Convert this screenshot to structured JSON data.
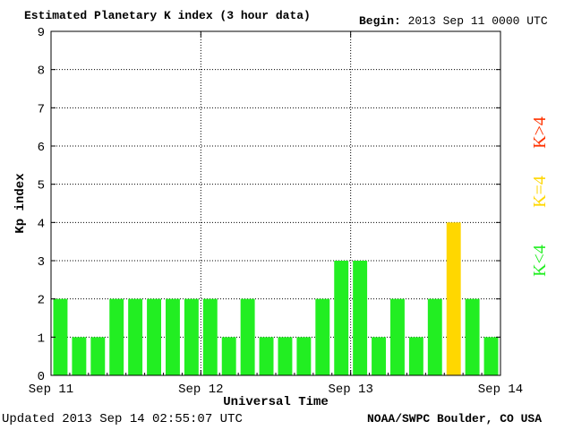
{
  "header": {
    "title": "Estimated Planetary K index (3 hour data)",
    "begin_label": "Begin:",
    "begin_value": "2013 Sep 11 0000 UTC"
  },
  "footer": {
    "updated": "Updated 2013 Sep 14 02:55:07 UTC",
    "credit": "NOAA/SWPC Boulder, CO USA"
  },
  "legend": {
    "high": "K>4",
    "mid": "K=4",
    "low": "K<4"
  },
  "colors": {
    "low": "#22ee22",
    "mid": "#ffd700",
    "high": "#ff3300",
    "axis": "#000000",
    "grid": "#000000"
  },
  "chart_data": {
    "type": "bar",
    "title": "Estimated Planetary K index (3 hour data)",
    "xlabel": "Universal Time",
    "ylabel": "Kp index",
    "ylim": [
      0,
      9
    ],
    "yticks": [
      "0",
      "1",
      "2",
      "3",
      "4",
      "5",
      "6",
      "7",
      "8",
      "9"
    ],
    "xticks": [
      "Sep 11",
      "Sep 12",
      "Sep 13",
      "Sep 14"
    ],
    "grid": true,
    "interval": "3 hour",
    "series": [
      {
        "values": [
          2,
          1,
          1,
          2,
          2,
          2,
          2,
          2,
          2,
          1,
          2,
          1,
          1,
          1,
          2,
          3,
          3,
          1,
          2,
          1,
          2,
          4,
          2,
          1
        ],
        "colors": [
          "low",
          "low",
          "low",
          "low",
          "low",
          "low",
          "low",
          "low",
          "low",
          "low",
          "low",
          "low",
          "low",
          "low",
          "low",
          "low",
          "low",
          "low",
          "low",
          "low",
          "low",
          "mid",
          "low",
          "low"
        ]
      }
    ]
  }
}
